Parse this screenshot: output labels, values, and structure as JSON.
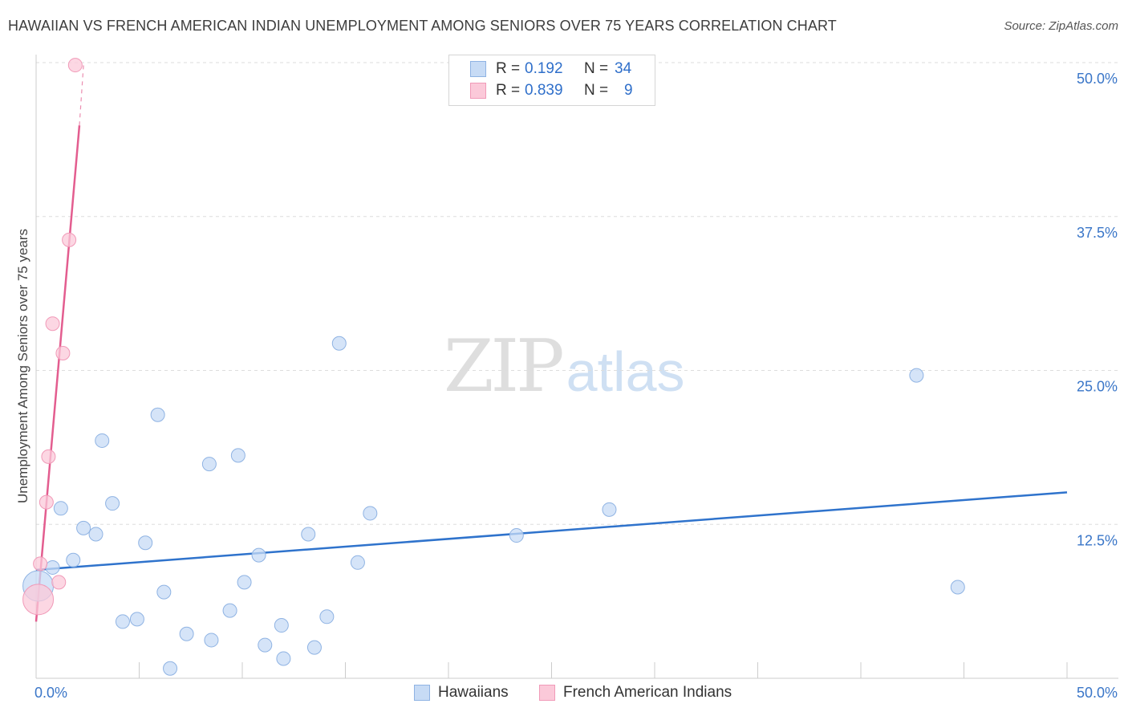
{
  "title": "HAWAIIAN VS FRENCH AMERICAN INDIAN UNEMPLOYMENT AMONG SENIORS OVER 75 YEARS CORRELATION CHART",
  "source": "Source: ZipAtlas.com",
  "watermark": {
    "zip": "ZIP",
    "atlas": "atlas"
  },
  "legend": {
    "items": [
      {
        "r_label": "R =",
        "r_value": "0.192",
        "n_label": "N =",
        "n_value": "34"
      },
      {
        "r_label": "R =",
        "r_value": "0.839",
        "n_label": "N =",
        "n_value": "9"
      }
    ]
  },
  "bottom_legend": {
    "hawaiians": "Hawaiians",
    "french": "French American Indians"
  },
  "colors": {
    "hawaiians_fill": "#c7dbf5",
    "hawaiians_stroke": "#8fb3e3",
    "hawaiians_line": "#2f73cc",
    "french_fill": "#fbc9d9",
    "french_stroke": "#f19ab8",
    "french_line": "#e35d8f",
    "grid": "#dddddd",
    "tick_text": "#3a76c8"
  },
  "chart_data": {
    "type": "scatter",
    "title": "HAWAIIAN VS FRENCH AMERICAN INDIAN UNEMPLOYMENT AMONG SENIORS OVER 75 YEARS CORRELATION CHART",
    "xlabel": "",
    "ylabel": "Unemployment Among Seniors over 75 years",
    "xlim": [
      0,
      50
    ],
    "ylim": [
      0,
      50
    ],
    "x_tick_labels": [
      "0.0%",
      "50.0%"
    ],
    "y_ticks": [
      12.5,
      25.0,
      37.5,
      50.0
    ],
    "y_tick_labels": [
      "12.5%",
      "25.0%",
      "37.5%",
      "50.0%"
    ],
    "grid": true,
    "series": [
      {
        "name": "Hawaiians",
        "r": 0.192,
        "n": 34,
        "points": [
          {
            "x": 0.1,
            "y": 7.5,
            "big": true
          },
          {
            "x": 0.8,
            "y": 9.0
          },
          {
            "x": 1.2,
            "y": 13.8
          },
          {
            "x": 1.8,
            "y": 9.6
          },
          {
            "x": 2.3,
            "y": 12.2
          },
          {
            "x": 2.9,
            "y": 11.7
          },
          {
            "x": 3.2,
            "y": 19.3
          },
          {
            "x": 3.7,
            "y": 14.2
          },
          {
            "x": 4.2,
            "y": 4.6
          },
          {
            "x": 4.9,
            "y": 4.8
          },
          {
            "x": 5.3,
            "y": 11.0
          },
          {
            "x": 5.9,
            "y": 21.4
          },
          {
            "x": 6.2,
            "y": 7.0
          },
          {
            "x": 6.5,
            "y": 0.8
          },
          {
            "x": 7.3,
            "y": 3.6
          },
          {
            "x": 8.4,
            "y": 17.4
          },
          {
            "x": 8.5,
            "y": 3.1
          },
          {
            "x": 9.4,
            "y": 5.5
          },
          {
            "x": 9.8,
            "y": 18.1
          },
          {
            "x": 10.1,
            "y": 7.8
          },
          {
            "x": 10.8,
            "y": 10.0
          },
          {
            "x": 11.1,
            "y": 2.7
          },
          {
            "x": 11.9,
            "y": 4.3
          },
          {
            "x": 12.0,
            "y": 1.6
          },
          {
            "x": 13.2,
            "y": 11.7
          },
          {
            "x": 13.5,
            "y": 2.5
          },
          {
            "x": 14.1,
            "y": 5.0
          },
          {
            "x": 14.7,
            "y": 27.2
          },
          {
            "x": 15.6,
            "y": 9.4
          },
          {
            "x": 16.2,
            "y": 13.4
          },
          {
            "x": 23.3,
            "y": 11.6
          },
          {
            "x": 27.8,
            "y": 13.7
          },
          {
            "x": 42.7,
            "y": 24.6
          },
          {
            "x": 44.7,
            "y": 7.4
          }
        ],
        "trend": {
          "x0": 0,
          "y0": 8.8,
          "x1": 50,
          "y1": 15.1
        }
      },
      {
        "name": "French American Indians",
        "r": 0.839,
        "n": 9,
        "points": [
          {
            "x": 0.1,
            "y": 6.4,
            "big": true
          },
          {
            "x": 0.2,
            "y": 9.3
          },
          {
            "x": 0.5,
            "y": 14.3
          },
          {
            "x": 0.6,
            "y": 18.0
          },
          {
            "x": 0.8,
            "y": 28.8
          },
          {
            "x": 1.1,
            "y": 7.8
          },
          {
            "x": 1.3,
            "y": 26.4
          },
          {
            "x": 1.6,
            "y": 35.6
          },
          {
            "x": 1.9,
            "y": 49.8
          }
        ],
        "trend": {
          "x0": 0,
          "y0": 4.6,
          "x1": 2.1,
          "y1": 44.9
        },
        "trend_dashed_to": {
          "x": 2.3,
          "y": 49.8
        }
      }
    ]
  }
}
